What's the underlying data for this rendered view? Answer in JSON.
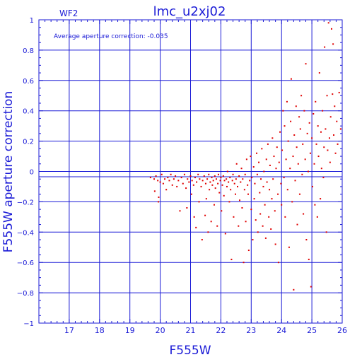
{
  "chart_data": {
    "type": "scatter",
    "title": "lmc_u2xj02",
    "chip_label": "WF2",
    "annotation": "Average aperture correction:  -0.035",
    "xlabel": "F555W",
    "ylabel": "F555W aperture correction",
    "xlim": [
      16,
      26
    ],
    "ylim": [
      -1,
      1
    ],
    "x_ticks": [
      17,
      18,
      19,
      20,
      21,
      22,
      23,
      24,
      25,
      26
    ],
    "y_ticks": [
      -1,
      -0.8,
      -0.6,
      -0.4,
      -0.2,
      0,
      0.2,
      0.4,
      0.6,
      0.8,
      1
    ],
    "y_tick_labels": [
      "−1",
      "−0.8",
      "−0.6",
      "−0.4",
      "−0.2",
      "0",
      "0.2",
      "0.4",
      "0.6",
      "0.8",
      "1"
    ],
    "reference_lines": [
      0,
      -0.035
    ],
    "grid": true,
    "colors": {
      "axes": "#1a1ad6",
      "points": "#e00000"
    },
    "series": [
      {
        "points": [
          [
            19.68,
            -0.04
          ],
          [
            19.8,
            -0.05
          ],
          [
            19.82,
            -0.13
          ],
          [
            19.86,
            -0.03
          ],
          [
            19.92,
            -0.06
          ],
          [
            19.94,
            -0.2
          ],
          [
            19.95,
            -0.17
          ],
          [
            20.0,
            -0.07
          ],
          [
            20.05,
            -0.02
          ],
          [
            20.1,
            -0.08
          ],
          [
            20.15,
            -0.05
          ],
          [
            20.2,
            -0.12
          ],
          [
            20.25,
            -0.04
          ],
          [
            20.3,
            -0.06
          ],
          [
            20.35,
            -0.02
          ],
          [
            20.4,
            -0.09
          ],
          [
            20.45,
            -0.05
          ],
          [
            20.5,
            -0.03
          ],
          [
            20.55,
            -0.1
          ],
          [
            20.6,
            -0.06
          ],
          [
            20.65,
            -0.26
          ],
          [
            20.7,
            -0.04
          ],
          [
            20.75,
            -0.08
          ],
          [
            20.8,
            -0.02
          ],
          [
            20.85,
            -0.11
          ],
          [
            20.88,
            -0.24
          ],
          [
            20.9,
            -0.05
          ],
          [
            20.95,
            -0.07
          ],
          [
            21.0,
            -0.03
          ],
          [
            21.03,
            -0.15
          ],
          [
            21.05,
            -0.06
          ],
          [
            21.1,
            -0.09
          ],
          [
            21.12,
            -0.3
          ],
          [
            21.15,
            -0.04
          ],
          [
            21.18,
            -0.37
          ],
          [
            21.2,
            -0.07
          ],
          [
            21.25,
            -0.02
          ],
          [
            21.28,
            -0.2
          ],
          [
            21.3,
            -0.05
          ],
          [
            21.35,
            -0.1
          ],
          [
            21.38,
            -0.45
          ],
          [
            21.4,
            -0.06
          ],
          [
            21.45,
            -0.03
          ],
          [
            21.48,
            -0.29
          ],
          [
            21.5,
            -0.08
          ],
          [
            21.52,
            -0.18
          ],
          [
            21.55,
            -0.05
          ],
          [
            21.58,
            -0.4
          ],
          [
            21.6,
            -0.02
          ],
          [
            21.62,
            -0.12
          ],
          [
            21.65,
            -0.07
          ],
          [
            21.68,
            -0.33
          ],
          [
            21.7,
            -0.04
          ],
          [
            21.72,
            -0.09
          ],
          [
            21.75,
            -0.06
          ],
          [
            21.78,
            -0.22
          ],
          [
            21.8,
            -0.03
          ],
          [
            21.82,
            -0.11
          ],
          [
            21.85,
            -0.05
          ],
          [
            21.88,
            -0.36
          ],
          [
            21.9,
            -0.08
          ],
          [
            21.92,
            -0.02
          ],
          [
            21.95,
            -0.14
          ],
          [
            21.98,
            -0.06
          ],
          [
            22.0,
            -0.04
          ],
          [
            22.02,
            -0.26
          ],
          [
            22.05,
            -0.09
          ],
          [
            22.08,
            -0.03
          ],
          [
            22.1,
            -0.16
          ],
          [
            22.12,
            -0.06
          ],
          [
            22.15,
            -0.41
          ],
          [
            22.18,
            -0.05
          ],
          [
            22.2,
            -0.1
          ],
          [
            22.22,
            0.0
          ],
          [
            22.25,
            -0.07
          ],
          [
            22.28,
            -0.2
          ],
          [
            22.3,
            -0.04
          ],
          [
            22.32,
            -0.12
          ],
          [
            22.35,
            -0.58
          ],
          [
            22.38,
            -0.06
          ],
          [
            22.4,
            -0.02
          ],
          [
            22.42,
            -0.3
          ],
          [
            22.45,
            -0.08
          ],
          [
            22.48,
            -0.15
          ],
          [
            22.5,
            -0.05
          ],
          [
            22.52,
            0.05
          ],
          [
            22.55,
            -0.1
          ],
          [
            22.58,
            -0.36
          ],
          [
            22.6,
            -0.03
          ],
          [
            22.62,
            -0.19
          ],
          [
            22.65,
            -0.07
          ],
          [
            22.68,
            0.02
          ],
          [
            22.7,
            -0.24
          ],
          [
            22.72,
            -0.05
          ],
          [
            22.75,
            -0.6
          ],
          [
            22.78,
            -0.12
          ],
          [
            22.8,
            -0.02
          ],
          [
            22.82,
            -0.33
          ],
          [
            22.85,
            0.08
          ],
          [
            22.88,
            -0.09
          ],
          [
            22.9,
            -0.15
          ],
          [
            22.92,
            -0.52
          ],
          [
            22.95,
            -0.06
          ],
          [
            22.98,
            0.1
          ],
          [
            23.0,
            -0.25
          ],
          [
            23.02,
            -0.04
          ],
          [
            23.05,
            -0.45
          ],
          [
            23.08,
            0.03
          ],
          [
            23.1,
            -0.18
          ],
          [
            23.12,
            -0.08
          ],
          [
            23.15,
            -0.32
          ],
          [
            23.18,
            0.12
          ],
          [
            23.2,
            -0.02
          ],
          [
            23.22,
            -0.4
          ],
          [
            23.25,
            0.06
          ],
          [
            23.28,
            -0.14
          ],
          [
            23.3,
            -0.28
          ],
          [
            23.32,
            -0.05
          ],
          [
            23.35,
            0.15
          ],
          [
            23.38,
            -0.36
          ],
          [
            23.4,
            -0.1
          ],
          [
            23.42,
            0.0
          ],
          [
            23.45,
            -0.22
          ],
          [
            23.48,
            -0.44
          ],
          [
            23.5,
            0.08
          ],
          [
            23.52,
            -0.07
          ],
          [
            23.55,
            0.18
          ],
          [
            23.58,
            -0.3
          ],
          [
            23.6,
            -0.12
          ],
          [
            23.62,
            0.04
          ],
          [
            23.65,
            -0.38
          ],
          [
            23.68,
            -0.18
          ],
          [
            23.7,
            0.22
          ],
          [
            23.72,
            -0.05
          ],
          [
            23.75,
            0.1
          ],
          [
            23.78,
            -0.26
          ],
          [
            23.8,
            -0.48
          ],
          [
            23.82,
            0.02
          ],
          [
            23.85,
            0.16
          ],
          [
            23.88,
            -0.15
          ],
          [
            23.9,
            -0.6
          ],
          [
            23.92,
            0.06
          ],
          [
            23.95,
            0.26
          ],
          [
            23.98,
            -0.08
          ],
          [
            24.0,
            -0.22
          ],
          [
            24.02,
            0.14
          ],
          [
            24.05,
            0.4
          ],
          [
            24.08,
            -0.04
          ],
          [
            24.1,
            0.3
          ],
          [
            24.12,
            -0.3
          ],
          [
            24.15,
            0.08
          ],
          [
            24.18,
            0.46
          ],
          [
            24.2,
            -0.12
          ],
          [
            24.22,
            0.2
          ],
          [
            24.25,
            -0.5
          ],
          [
            24.28,
            0.02
          ],
          [
            24.3,
            0.33
          ],
          [
            24.32,
            0.61
          ],
          [
            24.35,
            -0.2
          ],
          [
            24.38,
            0.1
          ],
          [
            24.4,
            -0.78
          ],
          [
            24.42,
            0.24
          ],
          [
            24.45,
            -0.06
          ],
          [
            24.48,
            0.43
          ],
          [
            24.5,
            0.16
          ],
          [
            24.52,
            -0.35
          ],
          [
            24.55,
            0.05
          ],
          [
            24.58,
            0.36
          ],
          [
            24.6,
            -0.15
          ],
          [
            24.62,
            0.28
          ],
          [
            24.65,
            0.5
          ],
          [
            24.68,
            -0.02
          ],
          [
            24.7,
            0.18
          ],
          [
            24.72,
            -0.28
          ],
          [
            24.75,
            0.4
          ],
          [
            24.78,
            0.08
          ],
          [
            24.8,
            0.71
          ],
          [
            24.82,
            -0.45
          ],
          [
            24.85,
            0.25
          ],
          [
            24.88,
            0.0
          ],
          [
            24.9,
            -0.58
          ],
          [
            24.92,
            0.32
          ],
          [
            24.95,
            0.12
          ],
          [
            24.97,
            -0.76
          ],
          [
            25.0,
            0.22
          ],
          [
            25.02,
            -0.1
          ],
          [
            25.05,
            0.38
          ],
          [
            25.08,
            0.05
          ],
          [
            25.1,
            -0.22
          ],
          [
            25.12,
            0.46
          ],
          [
            25.15,
            0.18
          ],
          [
            25.18,
            -0.3
          ],
          [
            25.2,
            0.3
          ],
          [
            25.22,
            0.1
          ],
          [
            25.25,
            0.65
          ],
          [
            25.28,
            -0.18
          ],
          [
            25.3,
            0.26
          ],
          [
            25.32,
            0.02
          ],
          [
            25.35,
            0.4
          ],
          [
            25.38,
            -0.04
          ],
          [
            25.4,
            0.16
          ],
          [
            25.42,
            0.82
          ],
          [
            25.45,
            0.28
          ],
          [
            25.48,
            -0.4
          ],
          [
            25.5,
            0.5
          ],
          [
            25.52,
            0.14
          ],
          [
            25.55,
            0.98
          ],
          [
            25.58,
            0.22
          ],
          [
            25.6,
            0.06
          ],
          [
            25.62,
            0.36
          ],
          [
            25.65,
            0.94
          ],
          [
            25.68,
            0.51
          ],
          [
            25.7,
            0.84
          ],
          [
            25.72,
            0.24
          ],
          [
            25.75,
            0.43
          ],
          [
            25.78,
            0.12
          ],
          [
            25.82,
            0.33
          ],
          [
            25.85,
            0.18
          ],
          [
            25.9,
            0.52
          ],
          [
            25.95,
            0.28
          ]
        ]
      }
    ]
  }
}
